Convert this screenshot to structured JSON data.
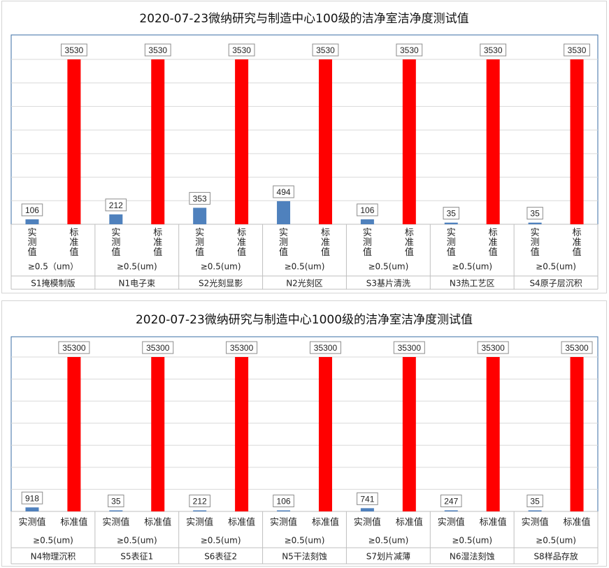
{
  "chart_data": [
    {
      "type": "bar",
      "title": "2020-07-23微纳研究与制造中心100级的洁净室洁净度测试值",
      "categories": [
        "S1掩模制版",
        "N1电子束",
        "S2光刻显影",
        "N2光刻区",
        "S3基片清洗",
        "N3热工艺区",
        "S4原子层沉积"
      ],
      "sublabels": [
        "≥0.5（um）",
        "≥0.5(um)",
        "≥0.5(um)",
        "≥0.5(um)",
        "≥0.5(um)",
        "≥0.5(um)",
        "≥0.5(um)"
      ],
      "series": [
        {
          "name": "实测值",
          "color": "#4f81bd",
          "values": [
            106,
            212,
            353,
            494,
            106,
            35,
            35
          ]
        },
        {
          "name": "标准值",
          "color": "#ff0000",
          "values": [
            3530,
            3530,
            3530,
            3530,
            3530,
            3530,
            3530
          ]
        }
      ],
      "series_label_orientation": "vertical",
      "ylim": [
        0,
        3530
      ],
      "grid": true
    },
    {
      "type": "bar",
      "title": "2020-07-23微纳研究与制造中心1000级的洁净室洁净度测试值",
      "categories": [
        "N4物理沉积",
        "S5表征1",
        "S6表征2",
        "N5干法刻蚀",
        "S7划片减薄",
        "N6湿法刻蚀",
        "S8样品存放"
      ],
      "sublabels": [
        "≥0.5(um)",
        "≥0.5(um)",
        "≥0.5(um)",
        "≥0.5(um)",
        "≥0.5(um)",
        "≥0.5(um)",
        "≥0.5(um)"
      ],
      "series": [
        {
          "name": "实测值",
          "color": "#4f81bd",
          "values": [
            918,
            35,
            212,
            106,
            741,
            247,
            35
          ]
        },
        {
          "name": "标准值",
          "color": "#ff0000",
          "values": [
            35300,
            35300,
            35300,
            35300,
            35300,
            35300,
            35300
          ]
        }
      ],
      "series_label_orientation": "horizontal",
      "ylim": [
        0,
        35300
      ],
      "grid": true
    }
  ]
}
